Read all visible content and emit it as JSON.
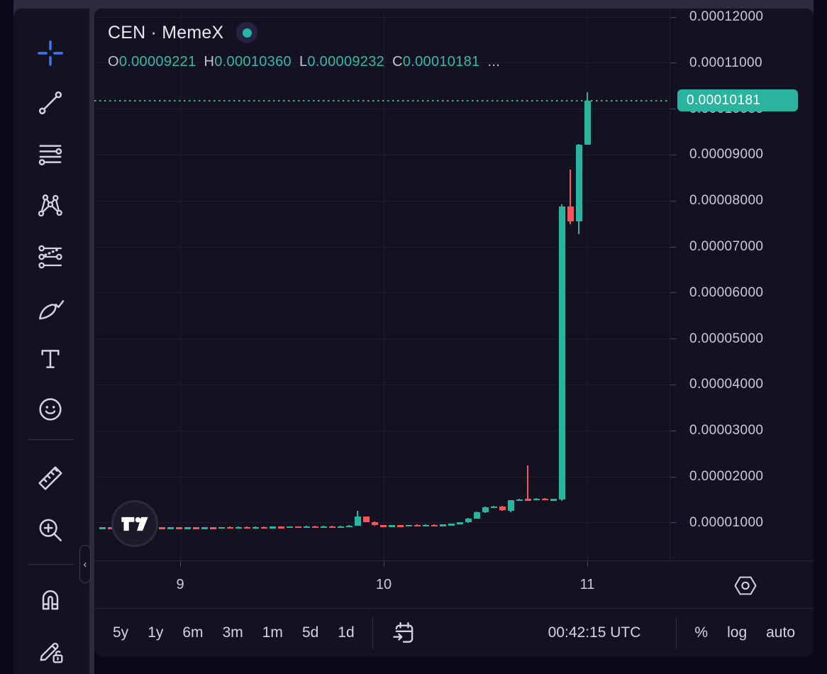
{
  "header": {
    "symbol_title": "CEN · MemeX",
    "ohlc": {
      "o_label": "O",
      "open": "0.00009221",
      "h_label": "H",
      "high": "0.00010360",
      "l_label": "L",
      "low": "0.00009232",
      "c_label": "C",
      "close": "0.00010181",
      "more": "..."
    }
  },
  "left_toolbar": {
    "tools": [
      "crosshair",
      "trend-line",
      "fib-retracement",
      "xabcd-pattern",
      "forecast",
      "brush",
      "text",
      "emoji",
      "ruler",
      "zoom-in",
      "magnet",
      "lock-drawings"
    ],
    "active_tool": "crosshair",
    "collapse_chevron": "‹"
  },
  "price_axis": {
    "labels": [
      "0.00012000",
      "0.00011000",
      "0.00010000",
      "0.00009000",
      "0.00008000",
      "0.00007000",
      "0.00006000",
      "0.00005000",
      "0.00004000",
      "0.00003000",
      "0.00002000",
      "0.00001000"
    ],
    "last_price_label": "0.00010181"
  },
  "time_axis": {
    "labels": [
      "9",
      "10",
      "11"
    ]
  },
  "bottom_toolbar": {
    "ranges": [
      "5y",
      "1y",
      "6m",
      "3m",
      "1m",
      "5d",
      "1d"
    ],
    "clock": "00:42:15 UTC",
    "scale_buttons": [
      "%",
      "log",
      "auto"
    ]
  },
  "colors": {
    "up": "#2ab39e",
    "down": "#f3555f",
    "accent_teal": "#2ab39e",
    "active_tool_blue": "#3b76f5",
    "panel_bg": "#141121",
    "frame_bg": "#2d2a3e"
  },
  "chart_data": {
    "type": "candlestick",
    "symbol": "CEN · MemeX",
    "title": "CEN · MemeX",
    "current_ohlc": {
      "open": "0.00009221",
      "high": "0.00010360",
      "low": "0.00009232",
      "close": "0.00010181"
    },
    "last_price": "0.00010181",
    "price_unit": 1e-08,
    "price_line_units": 10181,
    "y_axis": {
      "labels": [
        "0.00012000",
        "0.00011000",
        "0.00010000",
        "0.00009000",
        "0.00008000",
        "0.00007000",
        "0.00006000",
        "0.00005000",
        "0.00004000",
        "0.00003000",
        "0.00002000",
        "0.00001000"
      ],
      "range_units": [
        0,
        12000
      ],
      "grid": true
    },
    "x_axis": {
      "labels": [
        "9",
        "10",
        "11"
      ],
      "grid": true
    },
    "candles_ohlc_units": [
      [
        878,
        905,
        870,
        900
      ],
      [
        900,
        908,
        868,
        872
      ],
      [
        872,
        895,
        866,
        890
      ],
      [
        890,
        898,
        876,
        880
      ],
      [
        880,
        900,
        874,
        896
      ],
      [
        896,
        902,
        880,
        884
      ],
      [
        884,
        905,
        880,
        900
      ],
      [
        900,
        906,
        884,
        888
      ],
      [
        888,
        905,
        882,
        900
      ],
      [
        900,
        906,
        886,
        890
      ],
      [
        890,
        908,
        884,
        903
      ],
      [
        903,
        910,
        888,
        892
      ],
      [
        892,
        910,
        886,
        905
      ],
      [
        905,
        912,
        890,
        894
      ],
      [
        894,
        912,
        888,
        907
      ],
      [
        907,
        914,
        892,
        896
      ],
      [
        896,
        914,
        890,
        909
      ],
      [
        909,
        916,
        894,
        898
      ],
      [
        898,
        918,
        893,
        912
      ],
      [
        912,
        918,
        896,
        900
      ],
      [
        905,
        925,
        900,
        919
      ],
      [
        919,
        925,
        903,
        907
      ],
      [
        907,
        927,
        902,
        921
      ],
      [
        921,
        927,
        905,
        909
      ],
      [
        909,
        929,
        904,
        923
      ],
      [
        923,
        929,
        907,
        911
      ],
      [
        911,
        931,
        906,
        925
      ],
      [
        925,
        931,
        909,
        913
      ],
      [
        913,
        933,
        908,
        928
      ],
      [
        928,
        948,
        920,
        942
      ],
      [
        942,
        1265,
        935,
        1130
      ],
      [
        1130,
        1140,
        1005,
        1015
      ],
      [
        1015,
        1025,
        938,
        948
      ],
      [
        948,
        958,
        928,
        936
      ],
      [
        936,
        952,
        928,
        946
      ],
      [
        946,
        954,
        930,
        938
      ],
      [
        938,
        958,
        932,
        952
      ],
      [
        952,
        960,
        934,
        940
      ],
      [
        940,
        962,
        936,
        956
      ],
      [
        956,
        964,
        938,
        944
      ],
      [
        944,
        970,
        940,
        964
      ],
      [
        964,
        985,
        958,
        978
      ],
      [
        978,
        1015,
        970,
        1008
      ],
      [
        1008,
        1100,
        1000,
        1092
      ],
      [
        1095,
        1240,
        1085,
        1228
      ],
      [
        1228,
        1352,
        1220,
        1342
      ],
      [
        1342,
        1368,
        1335,
        1360
      ],
      [
        1360,
        1366,
        1262,
        1272
      ],
      [
        1255,
        1495,
        1228,
        1488
      ],
      [
        1488,
        1518,
        1482,
        1510
      ],
      [
        1520,
        2250,
        1488,
        1495
      ],
      [
        1495,
        1535,
        1490,
        1528
      ],
      [
        1528,
        1535,
        1495,
        1502
      ],
      [
        1502,
        1530,
        1496,
        1522
      ],
      [
        1505,
        7920,
        1482,
        7880
      ],
      [
        7880,
        8680,
        7500,
        7550
      ],
      [
        7550,
        9232,
        7280,
        9230
      ],
      [
        9221,
        10360,
        9232,
        10181
      ]
    ]
  }
}
